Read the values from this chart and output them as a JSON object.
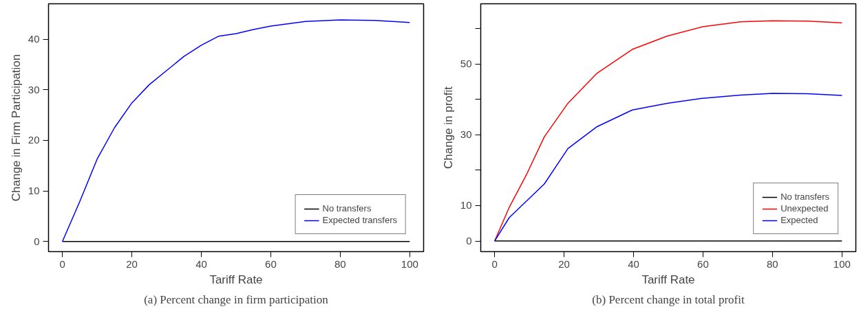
{
  "chart_data": [
    {
      "type": "line",
      "xlabel": "Tariff Rate",
      "ylabel": "Change in Firm Participation",
      "xlim": [
        -4,
        104
      ],
      "xticks": [
        0,
        20,
        40,
        60,
        80,
        100
      ],
      "ylim": [
        -2,
        47
      ],
      "yticks": [
        0,
        10,
        20,
        30,
        40
      ],
      "grid": false,
      "legend": "bottom right",
      "annotations": [
        "(a) Percent change in firm participation"
      ],
      "series": [
        {
          "name": "No transfers",
          "color": "#000000",
          "x": [
            0,
            100
          ],
          "values": [
            0,
            0
          ]
        },
        {
          "name": "Expected transfers",
          "color": "#0000ff",
          "x": [
            0,
            5,
            10,
            15,
            20,
            25,
            30,
            35,
            40,
            45,
            50,
            55,
            60,
            70,
            80,
            90,
            100
          ],
          "values": [
            0,
            7.9,
            16.3,
            22.5,
            27.4,
            31,
            33.8,
            36.6,
            38.8,
            40.6,
            41.1,
            41.9,
            42.6,
            43.5,
            43.8,
            43.7,
            43.3
          ]
        }
      ]
    },
    {
      "type": "line",
      "xlabel": "Tariff Rate",
      "ylabel": "Change in profit",
      "xlim": [
        -4,
        104
      ],
      "xticks": [
        0,
        20,
        40,
        60,
        80,
        100
      ],
      "ylim": [
        -3,
        67
      ],
      "yticks": [
        0,
        10,
        {
          "value": 20,
          "label": null
        },
        30,
        {
          "value": 40,
          "label": null
        },
        50,
        {
          "value": 60,
          "label": null
        }
      ],
      "grid": false,
      "legend": "bottom right",
      "annotations": [
        "(b) Percent change in total profit"
      ],
      "series": [
        {
          "name": "No transfers",
          "color": "#000000",
          "x": [
            0,
            100
          ],
          "values": [
            0,
            0
          ]
        },
        {
          "name": "Unexpected",
          "color": "#ff0000",
          "x": [
            0,
            4.2,
            9.3,
            14.3,
            21.1,
            29.5,
            39.6,
            49.7,
            59.8,
            70.8,
            80,
            90.1,
            100
          ],
          "values": [
            0,
            9.5,
            19,
            29.4,
            38.9,
            47.4,
            54.1,
            57.9,
            60.5,
            61.9,
            62.2,
            62.1,
            61.6
          ]
        },
        {
          "name": "Expected",
          "color": "#0000ff",
          "x": [
            0,
            4.2,
            9.3,
            14.3,
            21.1,
            29.5,
            39.6,
            49.7,
            59.8,
            70.8,
            80,
            90.1,
            100
          ],
          "values": [
            0,
            6.6,
            11.4,
            16.1,
            26.1,
            32.3,
            37,
            38.9,
            40.3,
            41.2,
            41.7,
            41.6,
            41.1
          ]
        }
      ]
    }
  ]
}
